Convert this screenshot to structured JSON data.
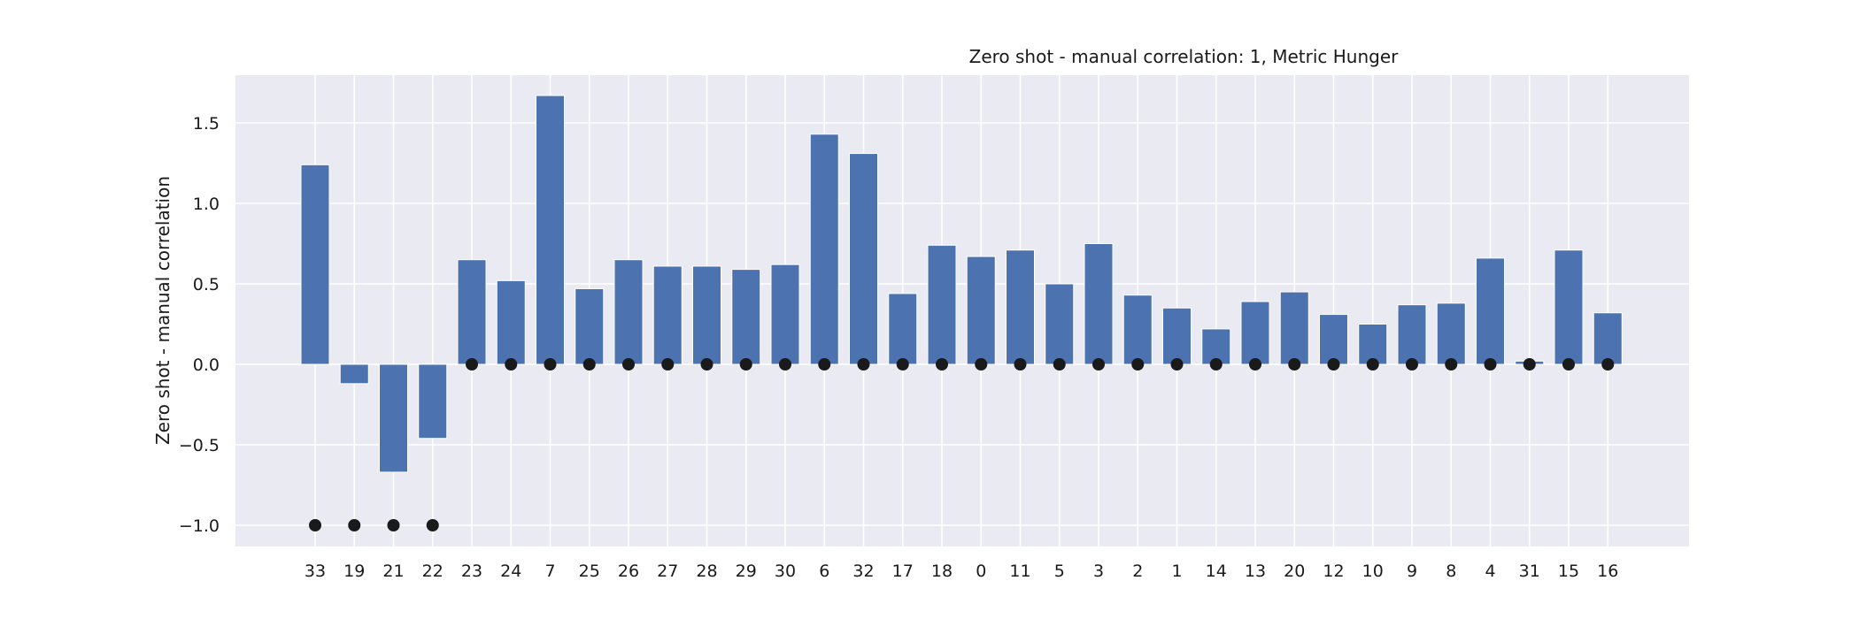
{
  "chart_data": {
    "type": "bar",
    "title": "Zero shot - manual correlation: 1, Metric Hunger",
    "xlabel": "",
    "ylabel": "Zero shot - manual correlation",
    "categories": [
      "33",
      "19",
      "21",
      "22",
      "23",
      "24",
      "7",
      "25",
      "26",
      "27",
      "28",
      "29",
      "30",
      "6",
      "32",
      "17",
      "18",
      "0",
      "11",
      "5",
      "3",
      "2",
      "1",
      "14",
      "13",
      "20",
      "12",
      "10",
      "9",
      "8",
      "4",
      "31",
      "15",
      "16"
    ],
    "series": [
      {
        "type": "bar",
        "values": [
          1.24,
          -0.12,
          -0.67,
          -0.46,
          0.65,
          0.52,
          1.67,
          0.47,
          0.65,
          0.61,
          0.61,
          0.59,
          0.62,
          1.43,
          1.31,
          0.44,
          0.74,
          0.67,
          0.71,
          0.5,
          0.75,
          0.43,
          0.35,
          0.22,
          0.39,
          0.45,
          0.31,
          0.25,
          0.37,
          0.38,
          0.66,
          0.02,
          0.71,
          0.32
        ],
        "color": "#4c72b0"
      },
      {
        "type": "scatter",
        "values": [
          -1,
          -1,
          -1,
          -1,
          0,
          0,
          0,
          0,
          0,
          0,
          0,
          0,
          0,
          0,
          0,
          0,
          0,
          0,
          0,
          0,
          0,
          0,
          0,
          0,
          0,
          0,
          0,
          0,
          0,
          0,
          0,
          0,
          0,
          0
        ],
        "color": "#1a1a1a"
      }
    ],
    "ylim": [
      -1.13,
      1.79
    ],
    "yticks": [
      -1.0,
      -0.5,
      0.0,
      0.5,
      1.0,
      1.5
    ],
    "ytick_labels": [
      "−1.0",
      "−0.5",
      "0.0",
      "0.5",
      "1.0",
      "1.5"
    ],
    "grid": true,
    "style": {
      "background": "#eaeaf2",
      "grid_color": "#ffffff"
    }
  }
}
